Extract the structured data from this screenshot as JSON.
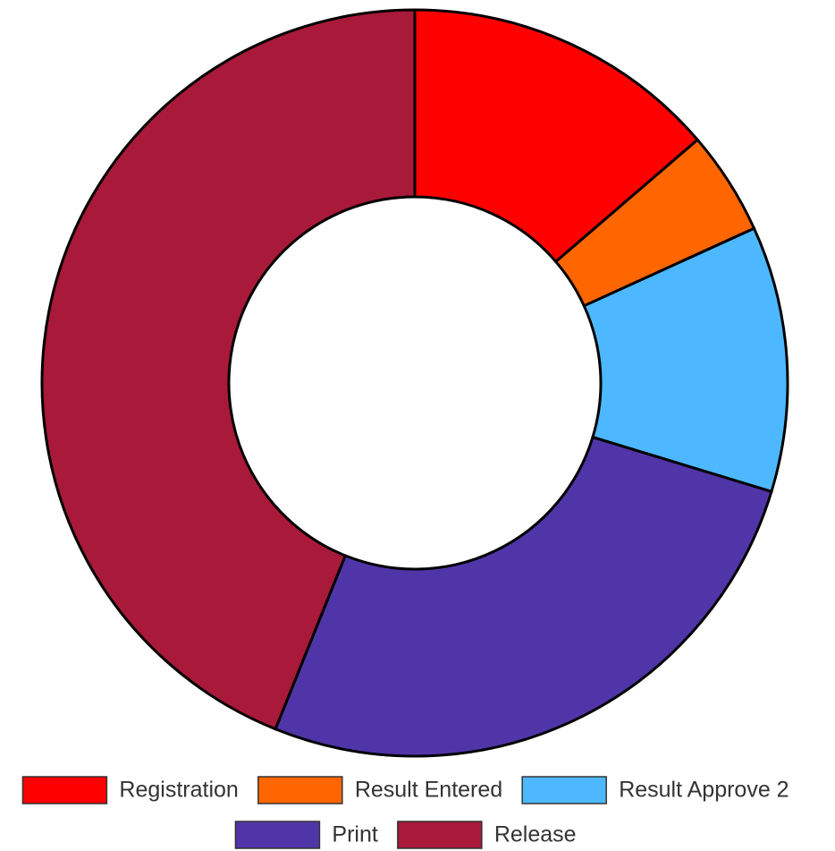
{
  "chart_data": {
    "type": "donut",
    "categories": [
      "Registration",
      "Result Entered",
      "Result Approve 2",
      "Print",
      "Release"
    ],
    "values": [
      13.7,
      4.5,
      11.5,
      26.4,
      43.9
    ],
    "colors": [
      "#ff0000",
      "#ff6600",
      "#4db8ff",
      "#5035a8",
      "#a8193a"
    ],
    "legend": "bottom"
  }
}
